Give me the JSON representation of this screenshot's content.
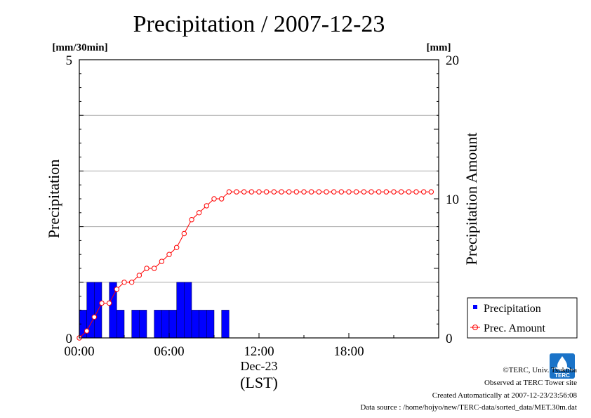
{
  "chart_data": {
    "type": "bar",
    "title": "Precipitation / 2007-12-23",
    "left_axis": {
      "label": "Precipitation",
      "unit": "[mm/30min]",
      "ylim": [
        0,
        5
      ],
      "ticks": [
        0,
        5
      ]
    },
    "right_axis": {
      "label": "Precipitation Amount",
      "unit": "[mm]",
      "ylim": [
        0,
        20
      ],
      "ticks": [
        0,
        10,
        20
      ]
    },
    "x_axis": {
      "range_hours": [
        0,
        24
      ],
      "tick_labels": [
        "00:00",
        "06:00",
        "12:00",
        "18:00"
      ],
      "date_label": "Dec-23",
      "tz_label": "(LST)"
    },
    "grid": true,
    "legend": {
      "position": "bottom-right",
      "entries": [
        "Precipitation",
        "Prec. Amount"
      ]
    },
    "series": [
      {
        "name": "Precipitation",
        "axis": "left",
        "color": "#0000ff",
        "x": [
          0.5,
          1.0,
          1.5,
          2.0,
          2.5,
          3.0,
          3.5,
          4.0,
          4.5,
          5.0,
          5.5,
          6.0,
          6.5,
          7.0,
          7.5,
          8.0,
          8.5,
          9.0,
          9.5,
          10.0
        ],
        "values": [
          0.5,
          1.0,
          1.0,
          0.0,
          1.0,
          0.5,
          0.0,
          0.5,
          0.5,
          0.0,
          0.5,
          0.5,
          0.5,
          1.0,
          1.0,
          0.5,
          0.5,
          0.5,
          0.0,
          0.5
        ]
      },
      {
        "name": "Prec. Amount",
        "axis": "right",
        "color": "#ff0000",
        "x": [
          0,
          0.5,
          1.0,
          1.5,
          2.0,
          2.5,
          3.0,
          3.5,
          4.0,
          4.5,
          5.0,
          5.5,
          6.0,
          6.5,
          7.0,
          7.5,
          8.0,
          8.5,
          9.0,
          9.5,
          10.0,
          10.5,
          11.0,
          11.5,
          12.0,
          12.5,
          13.0,
          13.5,
          14.0,
          14.5,
          15.0,
          15.5,
          16.0,
          16.5,
          17.0,
          17.5,
          18.0,
          18.5,
          19.0,
          19.5,
          20.0,
          20.5,
          21.0,
          21.5,
          22.0,
          22.5,
          23.0,
          23.5
        ],
        "values": [
          0.0,
          0.5,
          1.5,
          2.5,
          2.5,
          3.5,
          4.0,
          4.0,
          4.5,
          5.0,
          5.0,
          5.5,
          6.0,
          6.5,
          7.5,
          8.5,
          9.0,
          9.5,
          10.0,
          10.0,
          10.5,
          10.5,
          10.5,
          10.5,
          10.5,
          10.5,
          10.5,
          10.5,
          10.5,
          10.5,
          10.5,
          10.5,
          10.5,
          10.5,
          10.5,
          10.5,
          10.5,
          10.5,
          10.5,
          10.5,
          10.5,
          10.5,
          10.5,
          10.5,
          10.5,
          10.5,
          10.5,
          10.5
        ]
      }
    ]
  },
  "footer": {
    "copyright": "©TERC, Univ. Tsukuba",
    "observed": "Observed at TERC Tower site",
    "created": "Created Automatically at 2007-12-23/23:56:08",
    "source": "Data source : /home/hojyo/new/TERC-data/sorted_data/MET.30m.dat"
  },
  "logo_text": "TERC"
}
